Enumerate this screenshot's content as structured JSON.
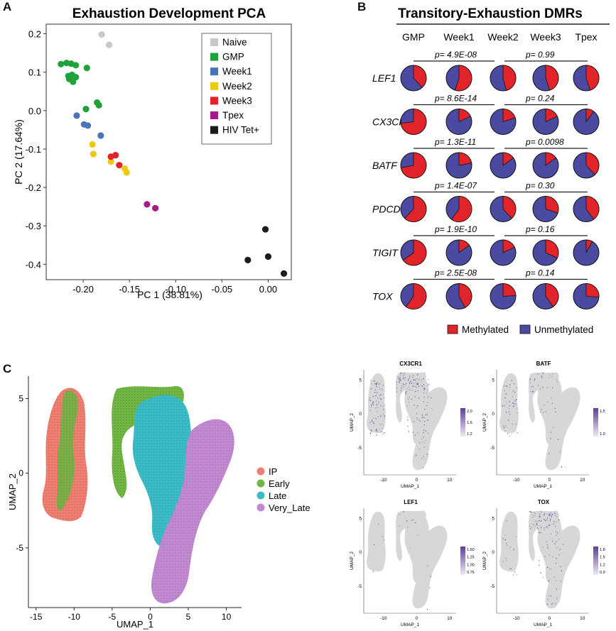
{
  "panels": {
    "a": "A",
    "b": "B",
    "c": "C"
  },
  "colors": {
    "Naive": "#c8c8c8",
    "GMP": "#1fa23a",
    "Week1": "#4a73b8",
    "Week2": "#ecc913",
    "Week3": "#e0242a",
    "Tpex": "#a51a86",
    "HIV Tet+": "#1b1b1b",
    "methylated": "#e0242a",
    "unmethylated": "#4a4aa0",
    "IP": "#ee7f73",
    "Early": "#72b644",
    "Late": "#3ebcc6",
    "Very_Late": "#c18ad0",
    "feature_low": "#d7d7d7",
    "feature_high": "#5e3f98"
  },
  "chart_data": [
    {
      "id": "pca",
      "type": "scatter",
      "title": "Exhaustion Development PCA",
      "xlabel": "PC 1 (38.81%)",
      "ylabel": "PC 2 (17.64%)",
      "xlim": [
        -0.24,
        0.025
      ],
      "ylim": [
        -0.44,
        0.225
      ],
      "xticks": [
        -0.2,
        -0.15,
        -0.1,
        -0.05,
        0.0
      ],
      "xtick_labels": [
        "-0.20",
        "-0.15",
        "-0.10",
        "-0.05",
        "0.00"
      ],
      "yticks": [
        0.2,
        0.1,
        0.0,
        -0.1,
        -0.2,
        -0.3,
        -0.4
      ],
      "ytick_labels": [
        "0.2",
        "0.1",
        "0.0",
        "-0.1",
        "-0.2",
        "-0.3",
        "-0.4"
      ],
      "legend": [
        "Naive",
        "GMP",
        "Week1",
        "Week2",
        "Week3",
        "Tpex",
        "HIV Tet+"
      ],
      "series": [
        {
          "name": "Naive",
          "points": [
            [
              -0.18,
              0.198
            ],
            [
              -0.172,
              0.171
            ]
          ]
        },
        {
          "name": "GMP",
          "points": [
            [
              -0.224,
              0.121
            ],
            [
              -0.218,
              0.124
            ],
            [
              -0.213,
              0.122
            ],
            [
              -0.208,
              0.118
            ],
            [
              -0.196,
              0.111
            ],
            [
              -0.216,
              0.09
            ],
            [
              -0.212,
              0.093
            ],
            [
              -0.208,
              0.087
            ],
            [
              -0.215,
              0.082
            ],
            [
              -0.211,
              0.075
            ],
            [
              -0.185,
              0.021
            ],
            [
              -0.183,
              0.014
            ],
            [
              -0.197,
              0.004
            ]
          ]
        },
        {
          "name": "Week1",
          "points": [
            [
              -0.207,
              -0.013
            ],
            [
              -0.199,
              -0.036
            ],
            [
              -0.195,
              -0.039
            ],
            [
              -0.181,
              -0.065
            ]
          ]
        },
        {
          "name": "Week2",
          "points": [
            [
              -0.19,
              -0.088
            ],
            [
              -0.189,
              -0.113
            ],
            [
              -0.17,
              -0.133
            ],
            [
              -0.155,
              -0.151
            ],
            [
              -0.153,
              -0.161
            ]
          ]
        },
        {
          "name": "Week3",
          "points": [
            [
              -0.17,
              -0.12
            ],
            [
              -0.165,
              -0.116
            ],
            [
              -0.161,
              -0.142
            ]
          ]
        },
        {
          "name": "Tpex",
          "points": [
            [
              -0.131,
              -0.244
            ],
            [
              -0.122,
              -0.254
            ]
          ]
        },
        {
          "name": "HIV Tet+",
          "points": [
            [
              -0.003,
              -0.309
            ],
            [
              -0.022,
              -0.389
            ],
            [
              0.0,
              -0.38
            ],
            [
              0.017,
              -0.424
            ]
          ]
        }
      ]
    },
    {
      "id": "dmr",
      "type": "pie",
      "title": "Transitory-Exhaustion DMRs",
      "columns": [
        "GMP",
        "Week1",
        "Week2",
        "Week3",
        "Tpex"
      ],
      "legend": [
        "Methylated",
        "Unmethylated"
      ],
      "rows": [
        {
          "gene": "LEF1",
          "p_left": "p= 4.9E-08",
          "p_right": "p= 0.99",
          "methylated": [
            0.38,
            0.55,
            0.46,
            0.45,
            0.45
          ]
        },
        {
          "gene": "CX3CR1",
          "p_left": "p= 8.6E-14",
          "p_right": "p= 0.24",
          "methylated": [
            0.73,
            0.18,
            0.2,
            0.18,
            0.1
          ]
        },
        {
          "gene": "BATF",
          "p_left": "p= 1.3E-11",
          "p_right": "p= 0.0098",
          "methylated": [
            0.72,
            0.22,
            0.15,
            0.15,
            0.38
          ]
        },
        {
          "gene": "PDCD1",
          "p_left": "p= 1.4E-07",
          "p_right": "p= 0.30",
          "methylated": [
            0.62,
            0.6,
            0.38,
            0.3,
            0.4
          ]
        },
        {
          "gene": "TIGIT",
          "p_left": "p= 1.9E-10",
          "p_right": "p= 0.16",
          "methylated": [
            0.65,
            0.15,
            0.18,
            0.32,
            0.08
          ]
        },
        {
          "gene": "TOX",
          "p_left": "p= 2.5E-08",
          "p_right": "p= 0.14",
          "methylated": [
            0.6,
            0.42,
            0.24,
            0.4,
            0.26
          ]
        }
      ]
    },
    {
      "id": "umap",
      "type": "scatter",
      "title": "",
      "xlabel": "UMAP_1",
      "ylabel": "UMAP_2",
      "xlim": [
        -16,
        12
      ],
      "ylim": [
        -9,
        6.5
      ],
      "xticks": [
        -15,
        -10,
        -5,
        0,
        5,
        10
      ],
      "xtick_labels": [
        "-15",
        "-10",
        "-5",
        "0",
        "5",
        "10"
      ],
      "yticks": [
        5,
        0,
        -5
      ],
      "ytick_labels": [
        "5",
        "0",
        "-5"
      ],
      "legend": [
        "IP",
        "Early",
        "Late",
        "Very_Late"
      ]
    },
    {
      "id": "features",
      "type": "scatter",
      "xlabel": "UMAP_1",
      "ylabel": "UMAP_2",
      "xticks": [
        -10,
        0,
        10
      ],
      "xtick_labels": [
        "-10",
        "0",
        "10"
      ],
      "yticks": [
        5,
        0,
        -5
      ],
      "ytick_labels": [
        "5",
        "0",
        "-5"
      ],
      "plots": [
        {
          "gene": "CX3CR1",
          "scale": [
            "2.0",
            "1.6",
            "1.2"
          ]
        },
        {
          "gene": "BATF",
          "scale": [
            "1.5",
            "1.0"
          ]
        },
        {
          "gene": "LEF1",
          "scale": [
            "1.50",
            "1.25",
            "1.00",
            "0.75"
          ]
        },
        {
          "gene": "TOX",
          "scale": [
            "1.8",
            "1.5",
            "1.2",
            "0.9"
          ]
        }
      ]
    }
  ]
}
